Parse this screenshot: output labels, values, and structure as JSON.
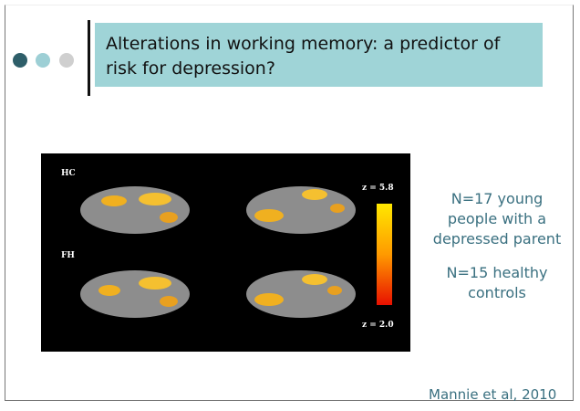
{
  "slide": {
    "title": "Alterations in working memory: a predictor of risk for depression?",
    "figure": {
      "labels": [
        "HC",
        "FH"
      ],
      "scale_max": "z = 5.8",
      "scale_min": "z = 2.0"
    },
    "notes": [
      "N=17 young people with a depressed parent",
      "N=15 healthy controls"
    ],
    "citation": "Mannie  et al, 2010"
  }
}
